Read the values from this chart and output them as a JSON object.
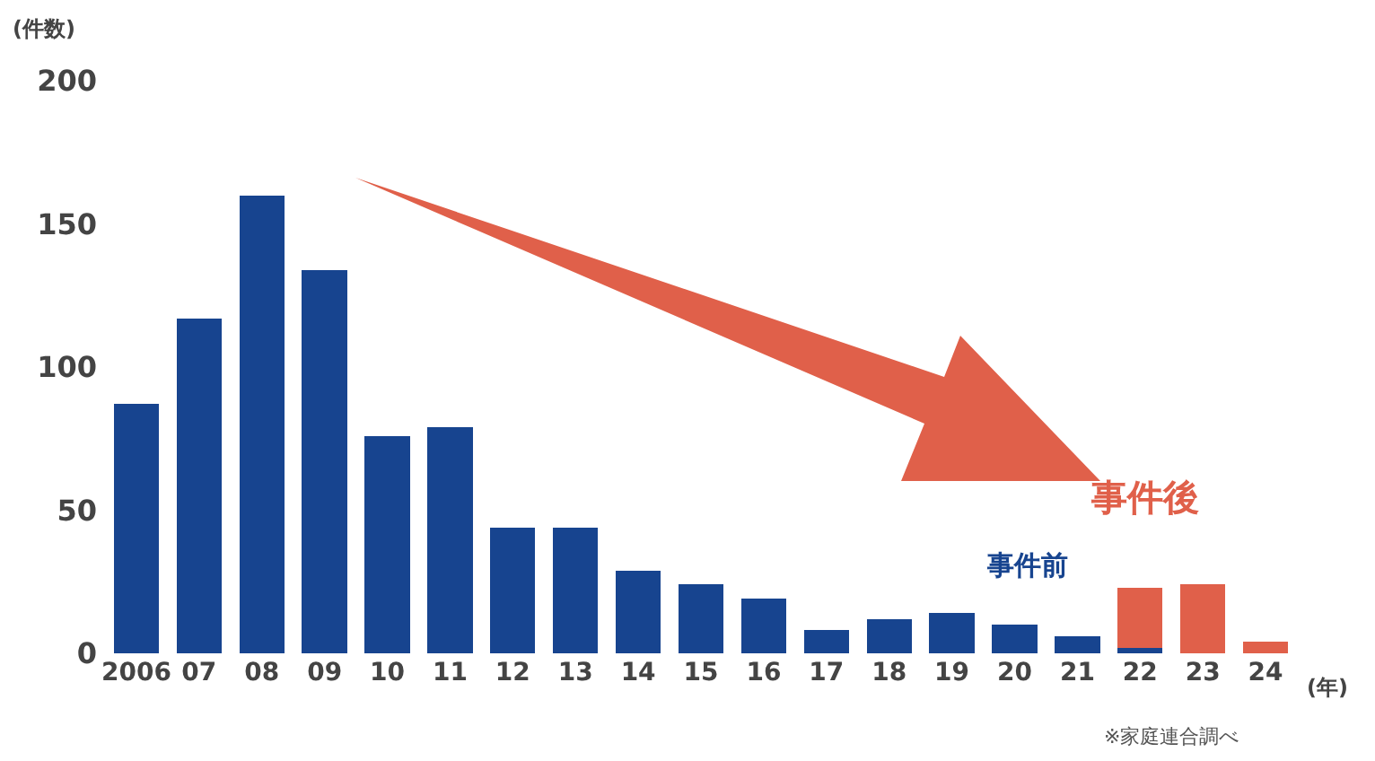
{
  "chart_data": {
    "type": "bar",
    "stacked": true,
    "ylabel": "(件数)",
    "xlabel": "(年)",
    "categories": [
      "2006",
      "07",
      "08",
      "09",
      "10",
      "11",
      "12",
      "13",
      "14",
      "15",
      "16",
      "17",
      "18",
      "19",
      "20",
      "21",
      "22",
      "23",
      "24"
    ],
    "series": [
      {
        "name": "事件前",
        "color": "#17448f",
        "values": [
          87,
          117,
          160,
          134,
          76,
          79,
          44,
          44,
          29,
          24,
          19,
          8,
          12,
          14,
          10,
          6,
          2,
          null,
          null
        ]
      },
      {
        "name": "事件後",
        "color": "#e0604a",
        "values": [
          null,
          null,
          null,
          null,
          null,
          null,
          null,
          null,
          null,
          null,
          null,
          null,
          null,
          null,
          null,
          null,
          21,
          24,
          4
        ]
      }
    ],
    "ylim": [
      0,
      200
    ],
    "yticks": [
      0,
      50,
      100,
      150,
      200
    ],
    "grid": false,
    "legend": false,
    "annotations": [
      "※家庭連合調べ"
    ]
  }
}
